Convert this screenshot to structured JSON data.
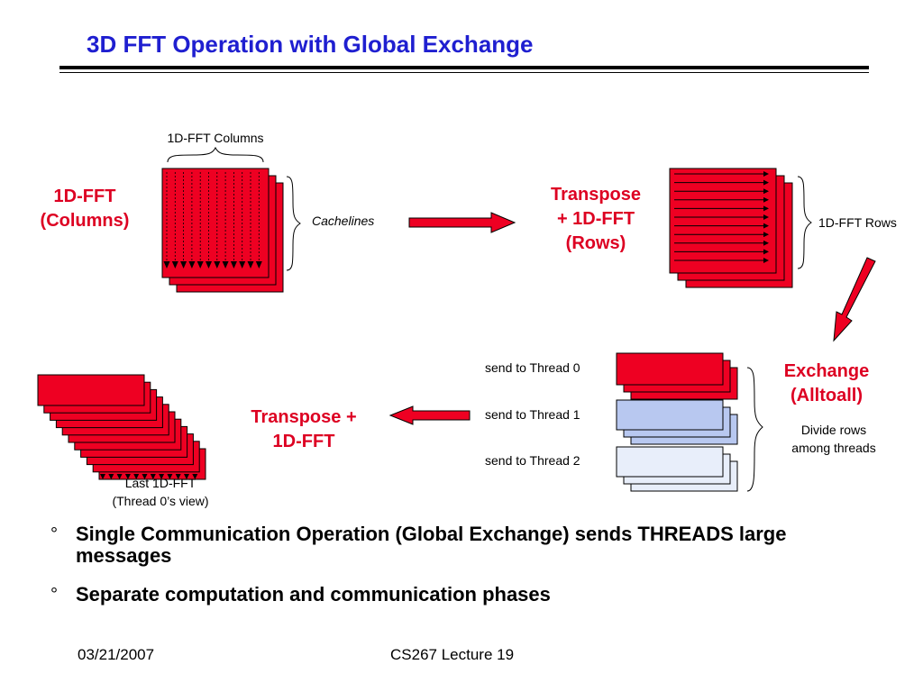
{
  "slide": {
    "title": "3D FFT Operation with Global Exchange"
  },
  "diagram": {
    "columns_stage": {
      "brace_label": "1D-FFT Columns",
      "side_label_line1": "1D-FFT",
      "side_label_line2": "(Columns)",
      "right_label": "Cachelines"
    },
    "rows_stage": {
      "label_line1": "Transpose",
      "label_line2": "+ 1D-FFT",
      "label_line3": "(Rows)",
      "right_label": "1D-FFT Rows"
    },
    "exchange_stage": {
      "label_line1": "Exchange",
      "label_line2": "(Alltoall)",
      "note_line1": "Divide rows",
      "note_line2": "among threads",
      "threads": [
        {
          "label": "send to Thread 0",
          "color": "#ee0022"
        },
        {
          "label": "send to Thread 1",
          "color": "#b8c8f0"
        },
        {
          "label": "send to Thread 2",
          "color": "#e8eefa"
        }
      ]
    },
    "final_stage": {
      "label_line1": "Transpose +",
      "label_line2": "1D-FFT",
      "caption_line1": "Last 1D-FFT",
      "caption_line2": "(Thread 0’s view)"
    },
    "colors": {
      "accent_red": "#ee0022",
      "label_red": "#dd0022",
      "title_blue": "#1f1fd0"
    }
  },
  "bullets": [
    {
      "mark": "°",
      "text": "Single Communication Operation (Global Exchange) sends THREADS large messages"
    },
    {
      "mark": "°",
      "text": "Separate computation and communication phases"
    }
  ],
  "footer": {
    "date": "03/21/2007",
    "course": "CS267 Lecture 19"
  }
}
